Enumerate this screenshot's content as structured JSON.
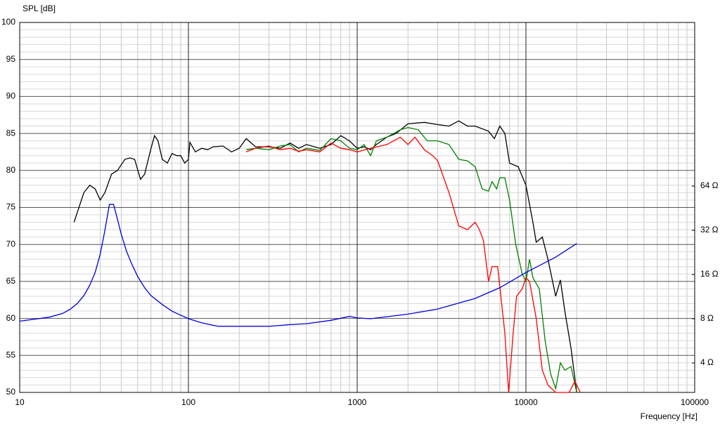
{
  "chart_data": {
    "type": "line",
    "ylabel": "SPL [dB]",
    "xlabel": "Frequency [Hz]",
    "xscale": "log",
    "y2scale": "log",
    "grid": true,
    "xlim": [
      10,
      100000
    ],
    "xticks": [
      10,
      100,
      1000,
      10000,
      100000
    ],
    "ylim": [
      50,
      100
    ],
    "yticks": [
      50,
      55,
      60,
      65,
      70,
      75,
      80,
      85,
      90,
      95,
      100
    ],
    "y2lim": [
      2.52,
      832
    ],
    "y2ticks": [
      {
        "value": 4,
        "label": "4 Ω"
      },
      {
        "value": 8,
        "label": "8 Ω"
      },
      {
        "value": 16,
        "label": "16 Ω"
      },
      {
        "value": 32,
        "label": "32 Ω"
      },
      {
        "value": 64,
        "label": "64 Ω"
      }
    ],
    "series": [
      {
        "name": "black",
        "color": "#000000",
        "x": [
          21,
          24,
          26,
          28,
          30,
          32,
          35,
          38,
          42,
          45,
          48,
          52,
          55,
          60,
          63,
          66,
          70,
          75,
          80,
          85,
          90,
          95,
          100,
          102,
          110,
          120,
          130,
          140,
          160,
          180,
          200,
          220,
          250,
          300,
          350,
          400,
          450,
          500,
          600,
          700,
          800,
          900,
          1000,
          1100,
          1200,
          1300,
          1500,
          1700,
          2000,
          2500,
          3000,
          3500,
          4000,
          4500,
          5000,
          6000,
          6500,
          7000,
          7500,
          8000,
          9000,
          10000,
          11000,
          11500,
          12500,
          13500,
          15000,
          16000,
          17000,
          18500,
          20000
        ],
        "values": [
          73,
          77,
          78,
          77.5,
          76,
          77,
          79.5,
          80,
          81.5,
          81.7,
          81.5,
          78.8,
          79.5,
          83,
          84.7,
          84,
          81.5,
          81,
          82.3,
          82,
          82,
          81,
          81.5,
          83.8,
          82.5,
          83,
          82.8,
          83.2,
          83.3,
          82.5,
          83,
          84.3,
          83.2,
          83.2,
          83,
          83.7,
          83,
          83.5,
          83,
          83.5,
          84.7,
          84,
          83,
          83.2,
          82.8,
          83.5,
          84.5,
          85,
          86.3,
          86.5,
          86.2,
          86,
          86.7,
          86,
          86,
          85.3,
          84.3,
          86,
          85,
          81,
          80.5,
          78,
          73,
          70.3,
          71,
          68,
          63,
          65.2,
          61,
          56,
          50
        ]
      },
      {
        "name": "green",
        "color": "#008000",
        "x": [
          220,
          250,
          300,
          350,
          400,
          450,
          500,
          600,
          700,
          800,
          900,
          1000,
          1100,
          1200,
          1300,
          1500,
          1800,
          2000,
          2300,
          2600,
          3000,
          3500,
          4000,
          4500,
          5000,
          5500,
          6000,
          6300,
          6700,
          7000,
          7500,
          8000,
          8700,
          9500,
          10000,
          10500,
          11000,
          12000,
          13000,
          14000,
          15000,
          16000,
          17000,
          18500,
          20000
        ],
        "values": [
          82.8,
          83,
          82.8,
          83.3,
          83.5,
          82.5,
          83,
          82.7,
          84.3,
          84,
          83,
          82.8,
          83.5,
          82,
          84,
          84.5,
          85.5,
          85.8,
          85.5,
          84,
          84,
          83.5,
          81.5,
          81.3,
          80.5,
          77.5,
          77.2,
          78.5,
          77.5,
          79,
          79,
          76,
          70,
          66,
          65,
          68,
          65.5,
          64,
          57,
          52.5,
          50.5,
          54,
          53,
          53.5,
          50
        ]
      },
      {
        "name": "red",
        "color": "#ff0000",
        "x": [
          220,
          250,
          300,
          350,
          400,
          450,
          500,
          600,
          700,
          800,
          900,
          1000,
          1200,
          1500,
          1800,
          2000,
          2200,
          2500,
          2800,
          3000,
          3500,
          4000,
          4500,
          5000,
          5300,
          5600,
          6000,
          6300,
          6800,
          7500,
          7900,
          8400,
          8800,
          9500,
          10000,
          10500,
          11500,
          12500,
          13500,
          15000,
          18000,
          19500,
          21000
        ],
        "values": [
          82.5,
          83,
          83.3,
          82.8,
          83,
          82.6,
          82.8,
          82.5,
          83.7,
          83,
          82.8,
          82.5,
          83,
          83.5,
          84.5,
          83.5,
          84.5,
          82.8,
          82,
          81.3,
          77,
          72.5,
          72,
          73,
          72,
          70.5,
          65,
          67,
          67,
          58,
          50,
          58,
          63,
          64,
          65.5,
          65,
          60,
          53,
          51,
          50,
          50,
          51.5,
          50
        ]
      },
      {
        "name": "blue",
        "color": "#0000dd",
        "axis": "y2",
        "x": [
          10,
          15,
          18,
          20,
          22,
          24,
          26,
          28,
          30,
          32,
          34,
          36,
          38,
          40,
          43,
          46,
          50,
          55,
          60,
          70,
          80,
          100,
          120,
          150,
          200,
          300,
          400,
          500,
          700,
          900,
          1000,
          1200,
          2000,
          3000,
          5000,
          7000,
          10000,
          15000,
          20000
        ],
        "values": [
          7.7,
          8.2,
          8.7,
          9.3,
          10.2,
          11.5,
          13.5,
          16.5,
          22,
          32,
          48,
          48,
          38,
          30,
          23,
          19,
          15.5,
          13,
          11.5,
          10,
          9,
          8,
          7.5,
          7.1,
          7.1,
          7.1,
          7.3,
          7.4,
          7.8,
          8.3,
          8.1,
          8,
          8.6,
          9.3,
          11,
          13,
          16.5,
          21,
          26
        ]
      }
    ]
  }
}
